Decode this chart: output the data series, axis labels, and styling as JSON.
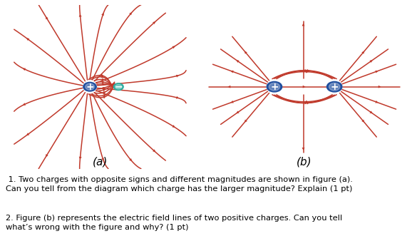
{
  "bg_color": "#ffffff",
  "arrow_color": "#c0392b",
  "charge_pos_color": "#1f4e9e",
  "charge_neg_color": "#2eada0",
  "label_a": "(a)",
  "label_b": "(b)",
  "text1": " 1. Two charges with opposite signs and different magnitudes are shown in figure (a).\nCan you tell from the diagram which charge has the larger magnitude? Explain (1 pt)",
  "text2": "2. Figure (b) represents the electric field lines of two positive charges. Can you tell\nwhat’s wrong with the figure and why? (1 pt)",
  "fig_width": 5.85,
  "fig_height": 3.38,
  "dpi": 100
}
